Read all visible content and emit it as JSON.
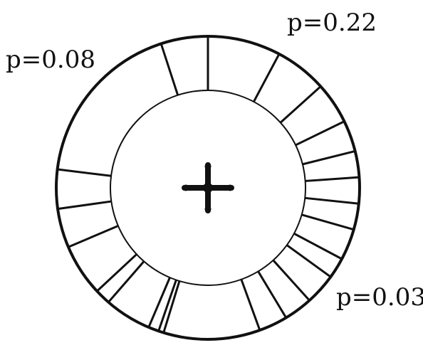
{
  "diagram": {
    "annotations": {
      "top_right": "p=0.22",
      "top_left": "p=0.08",
      "bottom_right": "p=0.03"
    },
    "segment_boundary_angles_deg": [
      0,
      28,
      48,
      64,
      76,
      86,
      96,
      106,
      118,
      126,
      138,
      149,
      160,
      197,
      199,
      203,
      221,
      227,
      247,
      262,
      277,
      342
    ],
    "center_marker_icon": "fixation-cross-icon",
    "colors": {
      "ink": "#111111",
      "background": "#ffffff"
    }
  }
}
